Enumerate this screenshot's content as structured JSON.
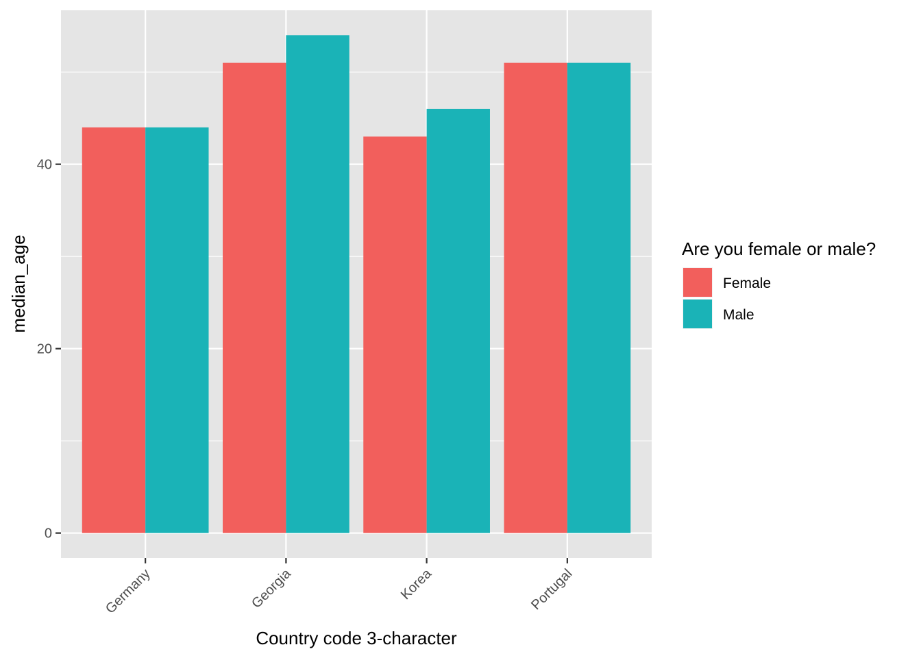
{
  "chart_data": {
    "type": "bar",
    "title": "",
    "xlabel": "Country code 3-character",
    "ylabel": "median_age",
    "categories": [
      "Germany",
      "Georgia",
      "Korea",
      "Portugal"
    ],
    "series": [
      {
        "name": "Female",
        "values": [
          44,
          51,
          43,
          51
        ],
        "color": "#F25F5C"
      },
      {
        "name": "Male",
        "values": [
          44,
          54,
          46,
          51
        ],
        "color": "#1AB3B7"
      }
    ],
    "ylim": [
      -2.7,
      56.7
    ],
    "yticks": [
      0,
      20,
      40
    ],
    "grid": true,
    "panel_background": "#E5E5E5",
    "legend": {
      "title": "Are you female or male?",
      "position": "right"
    }
  }
}
